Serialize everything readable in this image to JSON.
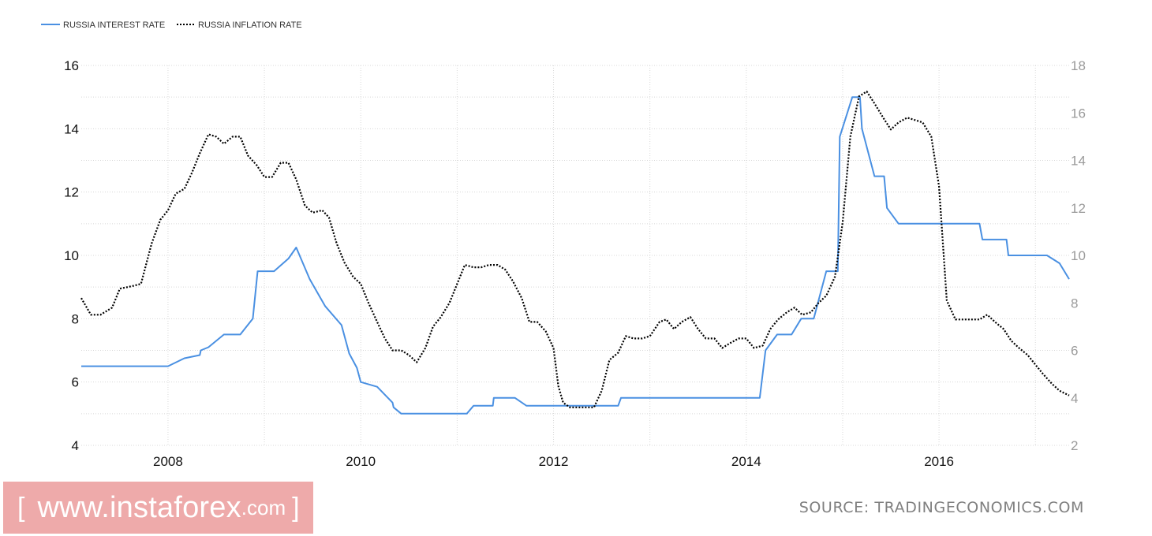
{
  "chart_data": {
    "type": "line",
    "title": "",
    "legend": {
      "placement": "top-left",
      "entries": [
        "RUSSIA INTEREST RATE",
        "RUSSIA INFLATION RATE"
      ]
    },
    "grid": true,
    "x_range": [
      2007.1,
      2017.35
    ],
    "x_ticks": [
      "2008",
      "2010",
      "2012",
      "2014",
      "2016"
    ],
    "y_left": {
      "range": [
        4,
        16
      ],
      "ticks": [
        "4",
        "6",
        "8",
        "10",
        "12",
        "14",
        "16"
      ]
    },
    "y_right": {
      "range": [
        2,
        18
      ],
      "ticks": [
        "2",
        "4",
        "6",
        "8",
        "10",
        "12",
        "14",
        "16",
        "18"
      ]
    },
    "series": [
      {
        "name": "RUSSIA INTEREST RATE",
        "axis": "left",
        "color": "#4a90e2",
        "style": "solid",
        "points": [
          [
            2007.1,
            6.5
          ],
          [
            2008.0,
            6.5
          ],
          [
            2008.17,
            6.75
          ],
          [
            2008.33,
            6.85
          ],
          [
            2008.34,
            7.0
          ],
          [
            2008.42,
            7.1
          ],
          [
            2008.58,
            7.5
          ],
          [
            2008.75,
            7.5
          ],
          [
            2008.88,
            8.0
          ],
          [
            2008.93,
            9.5
          ],
          [
            2009.1,
            9.5
          ],
          [
            2009.25,
            9.9
          ],
          [
            2009.33,
            10.25
          ],
          [
            2009.47,
            9.25
          ],
          [
            2009.63,
            8.4
          ],
          [
            2009.8,
            7.8
          ],
          [
            2009.88,
            6.9
          ],
          [
            2009.96,
            6.45
          ],
          [
            2010.0,
            6.0
          ],
          [
            2010.17,
            5.85
          ],
          [
            2010.33,
            5.35
          ],
          [
            2010.34,
            5.2
          ],
          [
            2010.42,
            5.0
          ],
          [
            2011.1,
            5.0
          ],
          [
            2011.17,
            5.25
          ],
          [
            2011.37,
            5.25
          ],
          [
            2011.38,
            5.5
          ],
          [
            2011.6,
            5.5
          ],
          [
            2011.72,
            5.25
          ],
          [
            2012.67,
            5.25
          ],
          [
            2012.7,
            5.5
          ],
          [
            2014.14,
            5.5
          ],
          [
            2014.2,
            7.0
          ],
          [
            2014.32,
            7.5
          ],
          [
            2014.47,
            7.5
          ],
          [
            2014.57,
            8.0
          ],
          [
            2014.7,
            8.0
          ],
          [
            2014.83,
            9.5
          ],
          [
            2014.95,
            9.5
          ],
          [
            2014.97,
            13.75
          ],
          [
            2015.1,
            15.0
          ],
          [
            2015.18,
            15.0
          ],
          [
            2015.2,
            14.0
          ],
          [
            2015.33,
            12.5
          ],
          [
            2015.43,
            12.5
          ],
          [
            2015.46,
            11.5
          ],
          [
            2015.58,
            11.0
          ],
          [
            2016.42,
            11.0
          ],
          [
            2016.45,
            10.5
          ],
          [
            2016.7,
            10.5
          ],
          [
            2016.72,
            10.0
          ],
          [
            2017.12,
            10.0
          ],
          [
            2017.25,
            9.75
          ],
          [
            2017.35,
            9.25
          ]
        ]
      },
      {
        "name": "RUSSIA INFLATION RATE",
        "axis": "right",
        "color": "#000000",
        "style": "dotted",
        "points": [
          [
            2007.1,
            8.2
          ],
          [
            2007.2,
            7.5
          ],
          [
            2007.3,
            7.5
          ],
          [
            2007.42,
            7.8
          ],
          [
            2007.5,
            8.6
          ],
          [
            2007.62,
            8.7
          ],
          [
            2007.72,
            8.8
          ],
          [
            2007.83,
            10.5
          ],
          [
            2007.92,
            11.5
          ],
          [
            2008.0,
            11.9
          ],
          [
            2008.08,
            12.6
          ],
          [
            2008.17,
            12.8
          ],
          [
            2008.25,
            13.5
          ],
          [
            2008.33,
            14.3
          ],
          [
            2008.42,
            15.1
          ],
          [
            2008.5,
            15.0
          ],
          [
            2008.58,
            14.7
          ],
          [
            2008.67,
            15.0
          ],
          [
            2008.75,
            15.0
          ],
          [
            2008.83,
            14.2
          ],
          [
            2008.92,
            13.8
          ],
          [
            2009.0,
            13.3
          ],
          [
            2009.08,
            13.3
          ],
          [
            2009.17,
            13.9
          ],
          [
            2009.25,
            13.9
          ],
          [
            2009.33,
            13.2
          ],
          [
            2009.42,
            12.1
          ],
          [
            2009.5,
            11.8
          ],
          [
            2009.6,
            11.9
          ],
          [
            2009.67,
            11.6
          ],
          [
            2009.75,
            10.5
          ],
          [
            2009.83,
            9.7
          ],
          [
            2009.92,
            9.1
          ],
          [
            2010.0,
            8.8
          ],
          [
            2010.08,
            8.0
          ],
          [
            2010.17,
            7.2
          ],
          [
            2010.25,
            6.5
          ],
          [
            2010.33,
            6.0
          ],
          [
            2010.42,
            6.0
          ],
          [
            2010.5,
            5.8
          ],
          [
            2010.58,
            5.5
          ],
          [
            2010.67,
            6.1
          ],
          [
            2010.75,
            7.0
          ],
          [
            2010.83,
            7.4
          ],
          [
            2010.92,
            8.0
          ],
          [
            2011.0,
            8.8
          ],
          [
            2011.08,
            9.6
          ],
          [
            2011.17,
            9.5
          ],
          [
            2011.25,
            9.5
          ],
          [
            2011.33,
            9.6
          ],
          [
            2011.42,
            9.6
          ],
          [
            2011.5,
            9.4
          ],
          [
            2011.58,
            8.9
          ],
          [
            2011.67,
            8.2
          ],
          [
            2011.75,
            7.2
          ],
          [
            2011.83,
            7.2
          ],
          [
            2011.92,
            6.8
          ],
          [
            2012.0,
            6.1
          ],
          [
            2012.05,
            4.5
          ],
          [
            2012.1,
            3.8
          ],
          [
            2012.17,
            3.6
          ],
          [
            2012.25,
            3.6
          ],
          [
            2012.33,
            3.6
          ],
          [
            2012.42,
            3.6
          ],
          [
            2012.5,
            4.3
          ],
          [
            2012.58,
            5.6
          ],
          [
            2012.67,
            5.9
          ],
          [
            2012.75,
            6.6
          ],
          [
            2012.83,
            6.5
          ],
          [
            2012.92,
            6.5
          ],
          [
            2013.0,
            6.6
          ],
          [
            2013.1,
            7.2
          ],
          [
            2013.17,
            7.3
          ],
          [
            2013.25,
            6.9
          ],
          [
            2013.33,
            7.2
          ],
          [
            2013.42,
            7.4
          ],
          [
            2013.5,
            6.9
          ],
          [
            2013.58,
            6.5
          ],
          [
            2013.67,
            6.5
          ],
          [
            2013.75,
            6.1
          ],
          [
            2013.83,
            6.3
          ],
          [
            2013.92,
            6.5
          ],
          [
            2014.0,
            6.5
          ],
          [
            2014.08,
            6.1
          ],
          [
            2014.17,
            6.2
          ],
          [
            2014.25,
            6.9
          ],
          [
            2014.33,
            7.3
          ],
          [
            2014.42,
            7.6
          ],
          [
            2014.5,
            7.8
          ],
          [
            2014.58,
            7.5
          ],
          [
            2014.67,
            7.6
          ],
          [
            2014.75,
            8.0
          ],
          [
            2014.83,
            8.3
          ],
          [
            2014.92,
            9.1
          ],
          [
            2015.0,
            11.4
          ],
          [
            2015.08,
            15.0
          ],
          [
            2015.17,
            16.7
          ],
          [
            2015.25,
            16.9
          ],
          [
            2015.33,
            16.4
          ],
          [
            2015.42,
            15.8
          ],
          [
            2015.5,
            15.3
          ],
          [
            2015.58,
            15.6
          ],
          [
            2015.67,
            15.8
          ],
          [
            2015.75,
            15.7
          ],
          [
            2015.83,
            15.6
          ],
          [
            2015.92,
            15.0
          ],
          [
            2016.0,
            12.9
          ],
          [
            2016.08,
            8.1
          ],
          [
            2016.17,
            7.3
          ],
          [
            2016.25,
            7.3
          ],
          [
            2016.33,
            7.3
          ],
          [
            2016.42,
            7.3
          ],
          [
            2016.5,
            7.5
          ],
          [
            2016.58,
            7.2
          ],
          [
            2016.67,
            6.9
          ],
          [
            2016.75,
            6.4
          ],
          [
            2016.83,
            6.1
          ],
          [
            2016.92,
            5.8
          ],
          [
            2017.0,
            5.4
          ],
          [
            2017.08,
            5.0
          ],
          [
            2017.17,
            4.6
          ],
          [
            2017.25,
            4.3
          ],
          [
            2017.35,
            4.1
          ]
        ]
      }
    ]
  },
  "watermark": {
    "bracket_open": "[",
    "domain": "www.instaforex",
    "tld": ".com",
    "bracket_close": "]"
  },
  "source": "SOURCE: TRADINGECONOMICS.COM"
}
